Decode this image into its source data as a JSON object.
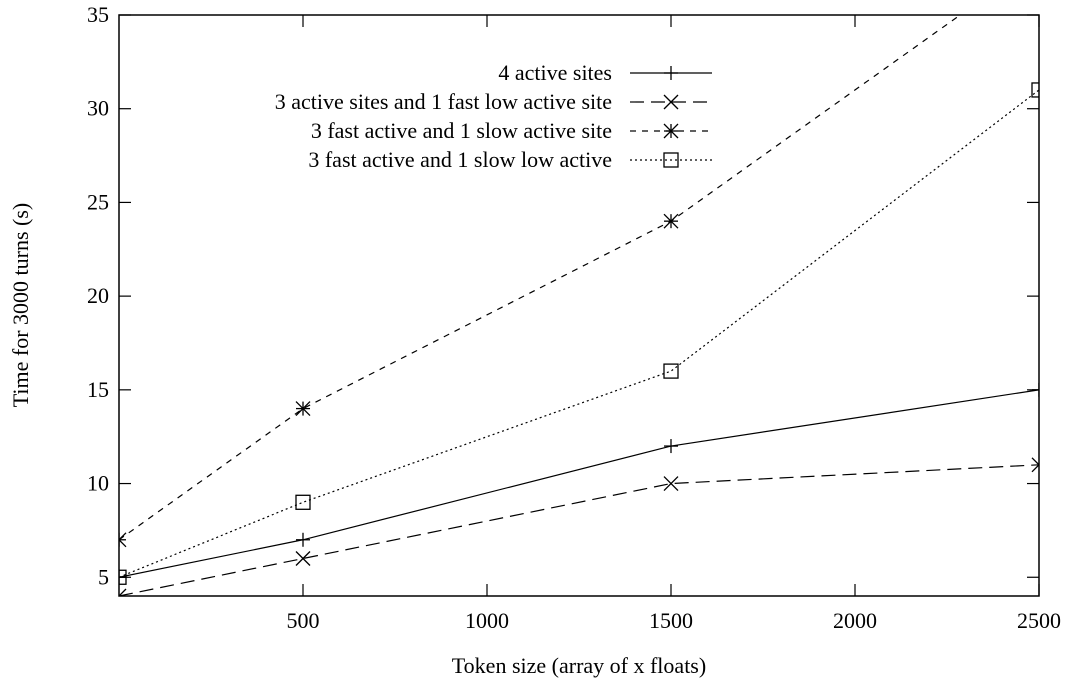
{
  "chart_data": {
    "type": "line",
    "title": "",
    "xlabel": "Token size (array of x floats)",
    "ylabel": "Time for 3000 turns (s)",
    "xlim": [
      0,
      2500
    ],
    "ylim": [
      4,
      35
    ],
    "xticks": [
      500,
      1000,
      1500,
      2000,
      2500
    ],
    "xtick_labels": [
      "500",
      "1000",
      "1500",
      "2000",
      "2500"
    ],
    "yticks": [
      5,
      10,
      15,
      20,
      25,
      30,
      35
    ],
    "ytick_labels": [
      "5",
      "10",
      "15",
      "20",
      "25",
      "30",
      "35"
    ],
    "grid": false,
    "legend_position": "top-right",
    "series": [
      {
        "name": "4 active sites",
        "x": [
          0,
          500,
          1500,
          2500
        ],
        "values": [
          5,
          7,
          12,
          15
        ],
        "marker": "plus",
        "dash": "solid"
      },
      {
        "name": "3 active sites and 1 fast low active site",
        "x": [
          0,
          500,
          1500,
          2500
        ],
        "values": [
          4,
          6,
          10,
          11
        ],
        "marker": "cross",
        "dash": "long-dash"
      },
      {
        "name": "3 fast active and 1  slow active site",
        "x": [
          0,
          500,
          1500,
          2500
        ],
        "values": [
          7,
          14,
          24,
          38
        ],
        "marker": "star",
        "dash": "short-dash"
      },
      {
        "name": "3 fast active and 1 slow low active",
        "x": [
          0,
          500,
          1500,
          2500
        ],
        "values": [
          5,
          9,
          16,
          31
        ],
        "marker": "square",
        "dash": "dotted"
      }
    ]
  }
}
